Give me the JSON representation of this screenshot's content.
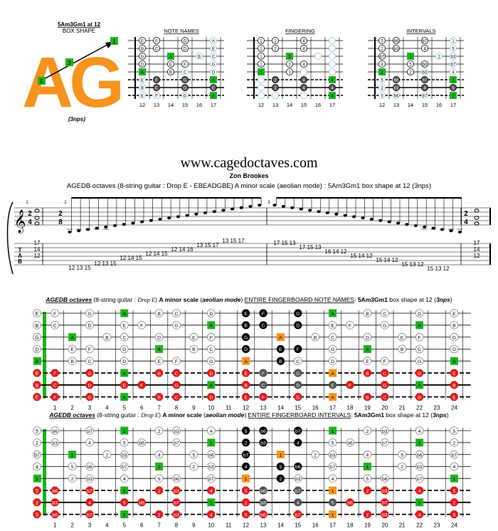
{
  "colors": {
    "orange": "#f7931e",
    "green": "#1db31d",
    "red": "#e31b1b",
    "dark": "#555555",
    "black": "#000000",
    "white": "#ffffff",
    "ring": "#8ec5dd"
  },
  "box": {
    "line1": "5Am3Gm1 at 12",
    "line2": "BOX SHAPE",
    "letters": "AG",
    "nps": "(3nps)",
    "labels": [
      "1",
      "3",
      "5"
    ]
  },
  "mini_titles": [
    "NOTE NAMES",
    "FINGERING",
    "INTERVALS"
  ],
  "mini_frets": [
    "12",
    "13",
    "14",
    "15",
    "16",
    "17"
  ],
  "site": "www.cagedoctaves.com",
  "author": "Zon Brookes",
  "subtitle": "AGEDB octaves (8-string guitar : Drop E - EBEADGBE) A minor scale (aeolian mode) : 5Am3Gm1 box shape at 12 (3nps)",
  "notation": {
    "time": [
      "2",
      "4"
    ],
    "time_mid": [
      "2",
      "8"
    ],
    "tab_letters": [
      "T",
      "A",
      "B"
    ],
    "measure_nums": [
      "1",
      "2",
      "3"
    ],
    "tab1": [
      "12 13 15",
      "12 13 15",
      "12 14 15",
      "12 14 15",
      "12 14 16",
      "13 15 17",
      "13 15 17",
      "17"
    ],
    "tab2": [
      "17 15 13",
      "17 15 13",
      "16 14 12",
      "15 14 12",
      "15 14 12",
      "15 13 12",
      "15 13 12",
      "17"
    ],
    "chord": [
      "17",
      "14",
      "12"
    ]
  },
  "fb_notes": {
    "title_parts": [
      "AGEDB octaves",
      " (8-string guitar : ",
      "Drop E",
      ") ",
      "A minor scale",
      " (",
      "aeolian mode",
      ") ",
      "ENTIRE FINGERBOARD NOTE NAMES",
      ": ",
      "5Am3Gm1",
      " box shape at 12 (",
      "3nps",
      ")"
    ]
  },
  "fb_int": {
    "title_parts": [
      "AGEDB octaves",
      " (8-string guitar : ",
      "Drop E",
      ") ",
      "A minor scale",
      " (",
      "aeolian mode",
      ") ",
      "ENTIRE FINGERBOARD INTERVALS",
      ": ",
      "5Am3Gm1",
      " box shape at 12 (",
      "3nps",
      ")"
    ]
  },
  "fret_numbers": [
    "1",
    "2",
    "3",
    "4",
    "5",
    "6",
    "7",
    "8",
    "9",
    "10",
    "11",
    "12",
    "13",
    "14",
    "15",
    "16",
    "17",
    "18",
    "19",
    "20",
    "21",
    "22",
    "23",
    "24"
  ],
  "tuning_notes": [
    "E",
    "B",
    "G",
    "D",
    "A",
    "E",
    "B",
    "E"
  ],
  "tuning_int": [
    "5",
    "2",
    "b7",
    "4",
    "1",
    "5",
    "2",
    "5"
  ]
}
